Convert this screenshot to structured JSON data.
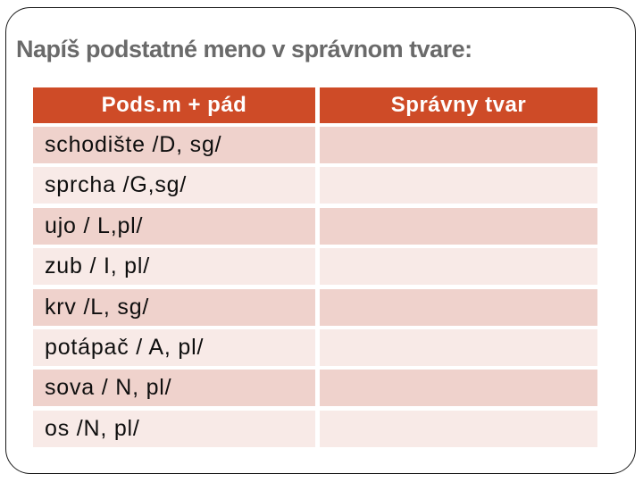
{
  "slide": {
    "title": "Napíš podstatné meno v správnom tvare:"
  },
  "table": {
    "headers": {
      "pods": "Pods.m + pád",
      "spravny": "Správny tvar"
    },
    "rows": [
      {
        "pods": "schodište /D, sg/",
        "spravny": ""
      },
      {
        "pods": "sprcha /G,sg/",
        "spravny": ""
      },
      {
        "pods": "ujo / L,pl/",
        "spravny": ""
      },
      {
        "pods": "zub / I, pl/",
        "spravny": ""
      },
      {
        "pods": "krv /L, sg/",
        "spravny": ""
      },
      {
        "pods": "potápač / A, pl/",
        "spravny": ""
      },
      {
        "pods": "sova / N, pl/",
        "spravny": ""
      },
      {
        "pods": "os /N, pl/",
        "spravny": ""
      }
    ]
  },
  "colors": {
    "header_bg": "#ce4b27",
    "header_text": "#ffffff",
    "row_dark": "#efd2cc",
    "row_light": "#f8eae7",
    "title_text": "#6a6a6a"
  }
}
